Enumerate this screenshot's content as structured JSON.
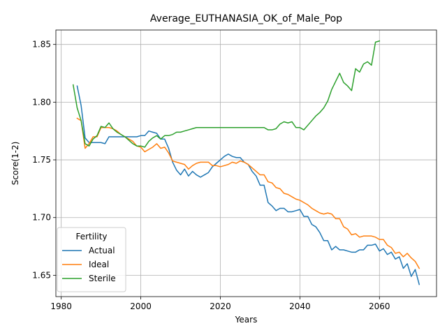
{
  "chart_data": {
    "type": "line",
    "title": "Average_EUTHANASIA_OK_of_Male_Pop",
    "xlabel": "Years",
    "ylabel": "Score(1-2)",
    "xlim": [
      1978.65,
      2074.35
    ],
    "ylim": [
      1.6315,
      1.8625
    ],
    "xticks": [
      1980,
      2000,
      2020,
      2040,
      2060
    ],
    "yticks": [
      1.65,
      1.7,
      1.75,
      1.8,
      1.85
    ],
    "xtick_labels": [
      "1980",
      "2000",
      "2020",
      "2040",
      "2060"
    ],
    "ytick_labels": [
      "1.65",
      "1.70",
      "1.75",
      "1.80",
      "1.85"
    ],
    "grid": true,
    "legend": {
      "title": "Fertility",
      "placement": "lower-left"
    },
    "series": [
      {
        "name": "Actual",
        "color": "#1f77b4",
        "x": [
          1984,
          1985,
          1986,
          1987,
          1988,
          1989,
          1990,
          1991,
          1992,
          1993,
          1994,
          1995,
          1996,
          1997,
          1998,
          1999,
          2000,
          2001,
          2002,
          2003,
          2004,
          2005,
          2006,
          2007,
          2008,
          2009,
          2010,
          2011,
          2012,
          2013,
          2014,
          2015,
          2016,
          2017,
          2018,
          2019,
          2020,
          2021,
          2022,
          2023,
          2024,
          2025,
          2026,
          2027,
          2028,
          2029,
          2030,
          2031,
          2032,
          2033,
          2034,
          2035,
          2036,
          2037,
          2038,
          2039,
          2040,
          2041,
          2042,
          2043,
          2044,
          2045,
          2046,
          2047,
          2048,
          2049,
          2050,
          2051,
          2052,
          2053,
          2054,
          2055,
          2056,
          2057,
          2058,
          2059,
          2060,
          2061,
          2062,
          2063,
          2064,
          2065,
          2066,
          2067,
          2068,
          2069,
          2070
        ],
        "values": [
          1.814,
          1.797,
          1.769,
          1.765,
          1.765,
          1.765,
          1.765,
          1.764,
          1.77,
          1.77,
          1.77,
          1.77,
          1.77,
          1.77,
          1.77,
          1.77,
          1.771,
          1.771,
          1.775,
          1.774,
          1.773,
          1.768,
          1.768,
          1.76,
          1.748,
          1.741,
          1.737,
          1.742,
          1.736,
          1.74,
          1.737,
          1.735,
          1.737,
          1.739,
          1.744,
          1.747,
          1.75,
          1.753,
          1.755,
          1.753,
          1.752,
          1.752,
          1.748,
          1.746,
          1.74,
          1.736,
          1.728,
          1.728,
          1.713,
          1.71,
          1.706,
          1.708,
          1.708,
          1.705,
          1.705,
          1.706,
          1.707,
          1.701,
          1.701,
          1.694,
          1.692,
          1.687,
          1.68,
          1.68,
          1.672,
          1.675,
          1.672,
          1.672,
          1.671,
          1.67,
          1.67,
          1.672,
          1.672,
          1.676,
          1.676,
          1.677,
          1.671,
          1.673,
          1.668,
          1.67,
          1.664,
          1.666,
          1.656,
          1.66,
          1.649,
          1.655,
          1.642
        ]
      },
      {
        "name": "Ideal",
        "color": "#ff7f0e",
        "x": [
          1984,
          1985,
          1986,
          1987,
          1988,
          1989,
          1990,
          1991,
          1992,
          1993,
          1994,
          1995,
          1996,
          1997,
          1998,
          1999,
          2000,
          2001,
          2002,
          2003,
          2004,
          2005,
          2006,
          2007,
          2008,
          2009,
          2010,
          2011,
          2012,
          2013,
          2014,
          2015,
          2016,
          2017,
          2018,
          2019,
          2020,
          2021,
          2022,
          2023,
          2024,
          2025,
          2026,
          2027,
          2028,
          2029,
          2030,
          2031,
          2032,
          2033,
          2034,
          2035,
          2036,
          2037,
          2038,
          2039,
          2040,
          2041,
          2042,
          2043,
          2044,
          2045,
          2046,
          2047,
          2048,
          2049,
          2050,
          2051,
          2052,
          2053,
          2054,
          2055,
          2056,
          2057,
          2058,
          2059,
          2060,
          2061,
          2062,
          2063,
          2064,
          2065,
          2066,
          2067,
          2068,
          2069,
          2070
        ],
        "values": [
          1.786,
          1.784,
          1.76,
          1.764,
          1.77,
          1.77,
          1.778,
          1.778,
          1.778,
          1.777,
          1.775,
          1.772,
          1.77,
          1.768,
          1.766,
          1.762,
          1.761,
          1.757,
          1.759,
          1.761,
          1.764,
          1.76,
          1.761,
          1.756,
          1.749,
          1.748,
          1.747,
          1.746,
          1.742,
          1.745,
          1.747,
          1.748,
          1.748,
          1.748,
          1.745,
          1.745,
          1.744,
          1.745,
          1.746,
          1.748,
          1.747,
          1.749,
          1.748,
          1.746,
          1.743,
          1.74,
          1.737,
          1.737,
          1.731,
          1.73,
          1.726,
          1.725,
          1.721,
          1.72,
          1.718,
          1.716,
          1.715,
          1.713,
          1.711,
          1.708,
          1.706,
          1.704,
          1.703,
          1.704,
          1.703,
          1.699,
          1.699,
          1.692,
          1.69,
          1.685,
          1.686,
          1.683,
          1.684,
          1.684,
          1.684,
          1.683,
          1.681,
          1.681,
          1.676,
          1.674,
          1.669,
          1.67,
          1.666,
          1.669,
          1.665,
          1.662,
          1.656
        ]
      },
      {
        "name": "Sterile",
        "color": "#2ca02c",
        "x": [
          1983,
          1984,
          1985,
          1986,
          1987,
          1988,
          1989,
          1990,
          1991,
          1992,
          1993,
          1994,
          1995,
          1996,
          1997,
          1998,
          1999,
          2000,
          2001,
          2002,
          2003,
          2004,
          2005,
          2006,
          2007,
          2008,
          2009,
          2010,
          2011,
          2012,
          2013,
          2014,
          2015,
          2016,
          2017,
          2018,
          2019,
          2020,
          2021,
          2022,
          2023,
          2024,
          2025,
          2026,
          2027,
          2028,
          2029,
          2030,
          2031,
          2032,
          2033,
          2034,
          2035,
          2036,
          2037,
          2038,
          2039,
          2040,
          2041,
          2042,
          2043,
          2044,
          2045,
          2046,
          2047,
          2048,
          2049,
          2050,
          2051,
          2052,
          2053,
          2054,
          2055,
          2056,
          2057,
          2058,
          2059,
          2060
        ],
        "values": [
          1.815,
          1.795,
          1.784,
          1.764,
          1.762,
          1.768,
          1.771,
          1.779,
          1.778,
          1.782,
          1.777,
          1.774,
          1.772,
          1.77,
          1.767,
          1.764,
          1.762,
          1.762,
          1.761,
          1.766,
          1.769,
          1.771,
          1.768,
          1.771,
          1.771,
          1.772,
          1.774,
          1.774,
          1.775,
          1.776,
          1.777,
          1.778,
          1.778,
          1.778,
          1.778,
          1.778,
          1.778,
          1.778,
          1.778,
          1.778,
          1.778,
          1.778,
          1.778,
          1.778,
          1.778,
          1.778,
          1.778,
          1.778,
          1.778,
          1.776,
          1.776,
          1.777,
          1.781,
          1.783,
          1.782,
          1.783,
          1.778,
          1.778,
          1.776,
          1.78,
          1.784,
          1.788,
          1.791,
          1.795,
          1.801,
          1.811,
          1.818,
          1.825,
          1.817,
          1.814,
          1.81,
          1.829,
          1.826,
          1.833,
          1.835,
          1.832,
          1.852,
          1.853
        ]
      }
    ]
  }
}
